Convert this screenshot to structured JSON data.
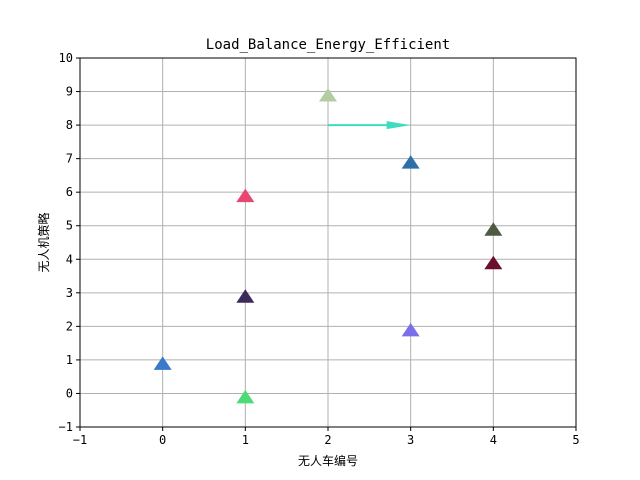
{
  "chart_data": {
    "type": "scatter",
    "title": "Load_Balance_Energy_Efficient",
    "xlabel": "无人车编号",
    "ylabel": "无人机策略",
    "xlim": [
      -1,
      5
    ],
    "ylim": [
      -1,
      10
    ],
    "xticks": [
      -1,
      0,
      1,
      2,
      3,
      4,
      5
    ],
    "yticks": [
      -1,
      0,
      1,
      2,
      3,
      4,
      5,
      6,
      7,
      8,
      9,
      10
    ],
    "grid": true,
    "marker": "triangle-up",
    "points": [
      {
        "x": 0,
        "y": 0.85,
        "color": "#3a78c9"
      },
      {
        "x": 1,
        "y": -0.15,
        "color": "#4ddb78"
      },
      {
        "x": 1,
        "y": 2.85,
        "color": "#3d2a5c"
      },
      {
        "x": 1,
        "y": 5.85,
        "color": "#e8456f"
      },
      {
        "x": 2,
        "y": 8.85,
        "color": "#b3cca0"
      },
      {
        "x": 3,
        "y": 6.85,
        "color": "#2f6fa8"
      },
      {
        "x": 3,
        "y": 1.85,
        "color": "#7b6fe8"
      },
      {
        "x": 4,
        "y": 4.85,
        "color": "#4f5a45"
      },
      {
        "x": 4,
        "y": 3.85,
        "color": "#6b0f2e"
      }
    ],
    "arrow": {
      "x_start": 2,
      "x_end": 3,
      "y": 8,
      "color": "#3ddcc0"
    }
  }
}
